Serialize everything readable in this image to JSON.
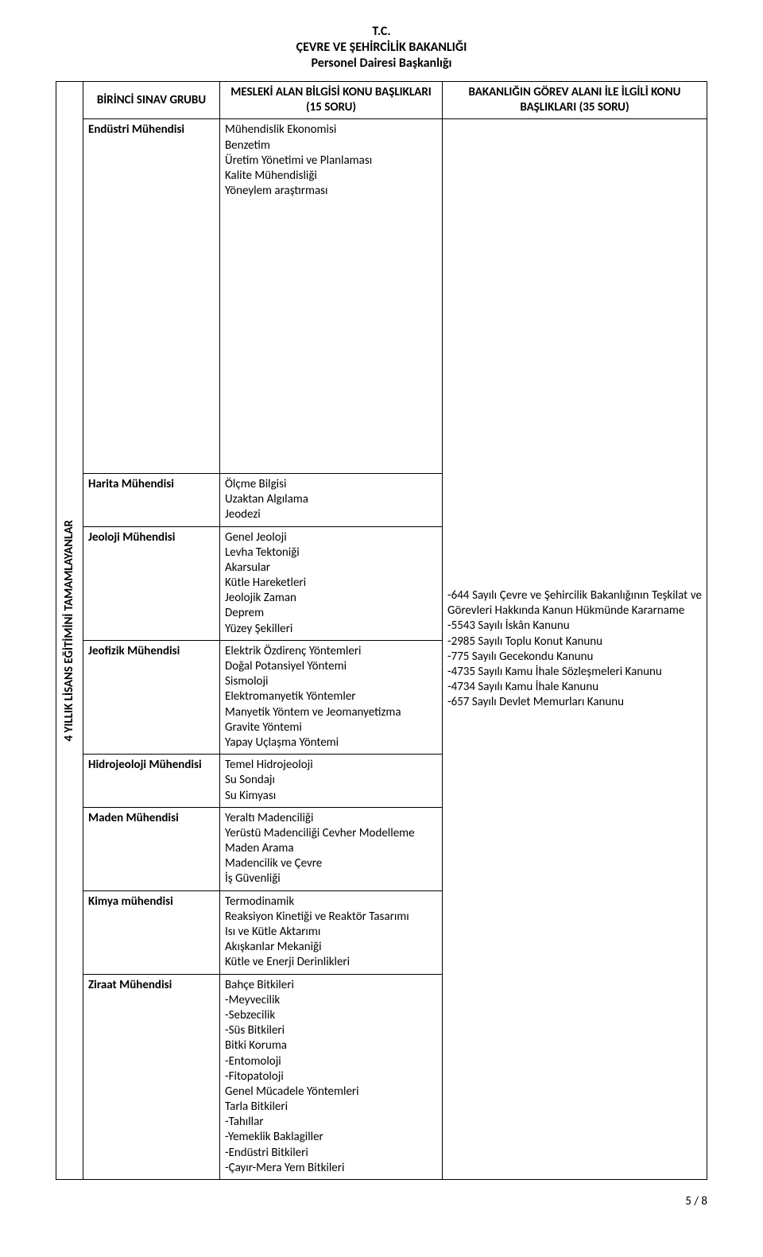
{
  "header": {
    "line1": "T.C.",
    "line2": "ÇEVRE VE ŞEHİRCİLİK BAKANLIĞI",
    "line3": "Personel Dairesi Başkanlığı"
  },
  "columns": {
    "group": "BİRİNCİ SINAV GRUBU",
    "topics": "MESLEKİ ALAN BİLGİSİ KONU BAŞLIKLARI (15 SORU)",
    "area": "BAKANLIĞIN GÖREV ALANI İLE İLGİLİ KONU BAŞLIKLARI (35 SORU)"
  },
  "sideLabel": "4 YILLIK LİSANS EĞİTİMİNİ TAMAMLAYANLAR",
  "rows": [
    {
      "category": "Endüstri Mühendisi",
      "topics": [
        "Mühendislik Ekonomisi",
        "Benzetim",
        "Üretim Yönetimi ve Planlaması",
        "Kalite Mühendisliği",
        "Yöneylem araştırması"
      ]
    },
    {
      "category": "Harita Mühendisi",
      "topics": [
        "Ölçme Bilgisi",
        "Uzaktan Algılama",
        "Jeodezi"
      ]
    },
    {
      "category": "Jeoloji Mühendisi",
      "topics": [
        "Genel Jeoloji",
        "Levha Tektoniği",
        "Akarsular",
        "Kütle Hareketleri",
        "Jeolojik Zaman",
        "Deprem",
        "Yüzey Şekilleri"
      ]
    },
    {
      "category": "Jeofizik Mühendisi",
      "topics": [
        "Elektrik Özdirenç Yöntemleri",
        "Doğal Potansiyel Yöntemi",
        "Sismoloji",
        "Elektromanyetik Yöntemler",
        "Manyetik Yöntem ve Jeomanyetizma",
        "Gravite Yöntemi",
        "Yapay Uçlaşma Yöntemi"
      ]
    },
    {
      "category": "Hidrojeoloji Mühendisi",
      "topics": [
        "Temel Hidrojeoloji",
        "Su Sondajı",
        "Su Kimyası"
      ]
    },
    {
      "category": "Maden Mühendisi",
      "topics": [
        "Yeraltı Madenciliği",
        "Yerüstü Madenciliği Cevher Modelleme",
        "Maden Arama",
        "Madencilik ve Çevre",
        "İş Güvenliği"
      ]
    },
    {
      "category": "Kimya mühendisi",
      "topics": [
        "Termodinamik",
        "Reaksiyon Kinetiği ve Reaktör Tasarımı",
        "Isı ve Kütle Aktarımı",
        "Akışkanlar Mekaniği",
        "Kütle ve Enerji Derinlikleri"
      ]
    },
    {
      "category": "Ziraat Mühendisi",
      "topics": [
        "Bahçe Bitkileri",
        "-Meyvecilik",
        "-Sebzecilik",
        "-Süs Bitkileri",
        "Bitki Koruma",
        "-Entomoloji",
        "-Fitopatoloji",
        "Genel Mücadele Yöntemleri",
        "Tarla Bitkileri",
        "-Tahıllar",
        "-Yemeklik Baklagiller",
        "-Endüstri Bitkileri",
        "-Çayır-Mera Yem Bitkileri"
      ]
    }
  ],
  "areaTopics": [
    "-644 Sayılı Çevre ve Şehircilik Bakanlığının Teşkilat ve Görevleri Hakkında Kanun Hükmünde Kararname",
    "-5543 Sayılı İskân Kanunu",
    "-2985 Sayılı Toplu Konut Kanunu",
    "-775 Sayılı Gecekondu Kanunu",
    "-4735 Sayılı Kamu İhale Sözleşmeleri Kanunu",
    "-4734 Sayılı Kamu İhale Kanunu",
    "-657 Sayılı Devlet Memurları Kanunu"
  ],
  "footer": "5 / 8"
}
